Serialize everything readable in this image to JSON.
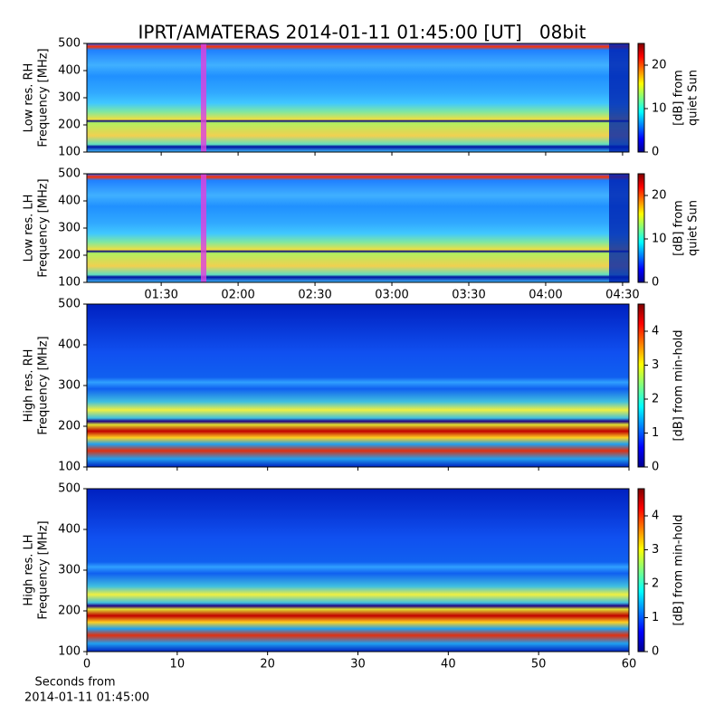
{
  "title": "IPRT/AMATERAS 2014-01-11 01:45:00 [UT]   08bit",
  "chart_data": [
    {
      "type": "heatmap",
      "ylabel": [
        "Low res. RH",
        "Frequency [MHz]"
      ],
      "ylim": [
        100,
        500
      ],
      "yticks": [
        100,
        200,
        300,
        400,
        500
      ],
      "xlim": [
        61,
        272.5
      ],
      "xticks": [
        90,
        120,
        150,
        180,
        210,
        240,
        270
      ],
      "xticklabels": false,
      "colorbar_label": [
        "[dB] from",
        "quiet Sun"
      ],
      "clim": [
        0,
        25
      ],
      "cticks": [
        0,
        10,
        20
      ]
    },
    {
      "type": "heatmap",
      "ylabel": [
        "Low res. LH",
        "Frequency [MHz]"
      ],
      "ylim": [
        100,
        500
      ],
      "yticks": [
        100,
        200,
        300,
        400,
        500
      ],
      "xlim": [
        61,
        272.5
      ],
      "xticks": [
        {
          "value": 90,
          "label": "01:30"
        },
        {
          "value": 120,
          "label": "02:00"
        },
        {
          "value": 150,
          "label": "02:30"
        },
        {
          "value": 180,
          "label": "03:00"
        },
        {
          "value": 210,
          "label": "03:30"
        },
        {
          "value": 240,
          "label": "04:00"
        },
        {
          "value": 270,
          "label": "04:30"
        }
      ],
      "colorbar_label": [
        "[dB] from",
        "quiet Sun"
      ],
      "clim": [
        0,
        25
      ],
      "cticks": [
        0,
        10,
        20
      ]
    },
    {
      "type": "heatmap",
      "ylabel": [
        "High res. RH",
        "Frequency [MHz]"
      ],
      "ylim": [
        100,
        500
      ],
      "yticks": [
        100,
        200,
        300,
        400,
        500
      ],
      "xlim": [
        0,
        60
      ],
      "xticks": [
        0,
        10,
        20,
        30,
        40,
        50,
        60
      ],
      "xticklabels": false,
      "colorbar_label": [
        "[dB] from min-hold"
      ],
      "clim": [
        0,
        4.8
      ],
      "cticks": [
        0,
        1,
        2,
        3,
        4
      ]
    },
    {
      "type": "heatmap",
      "ylabel": [
        "High res. LH",
        "Frequency [MHz]"
      ],
      "ylim": [
        100,
        500
      ],
      "yticks": [
        100,
        200,
        300,
        400,
        500
      ],
      "xlim": [
        0,
        60
      ],
      "xticks": [
        0,
        10,
        20,
        30,
        40,
        50,
        60
      ],
      "xlabel": [
        "Seconds from",
        "2014-01-11 01:45:00"
      ],
      "colorbar_label": [
        "[dB] from min-hold"
      ],
      "clim": [
        0,
        4.8
      ],
      "cticks": [
        0,
        1,
        2,
        3,
        4
      ]
    }
  ]
}
